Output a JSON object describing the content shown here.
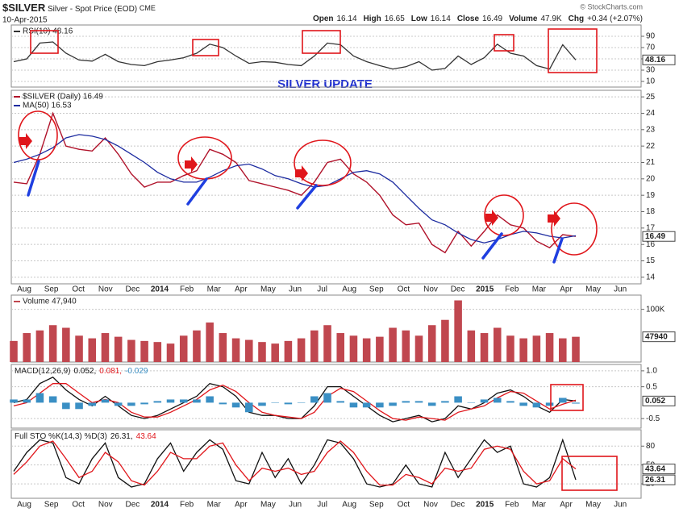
{
  "header": {
    "symbol": "$SILVER",
    "description": "Silver - Spot Price (EOD)",
    "exchange": "CME",
    "date": "10-Apr-2015",
    "source": "© StockCharts.com",
    "quote": [
      {
        "label": "Open",
        "value": "16.14"
      },
      {
        "label": "High",
        "value": "16.65"
      },
      {
        "label": "Low",
        "value": "16.14"
      },
      {
        "label": "Close",
        "value": "16.49"
      },
      {
        "label": "Volume",
        "value": "47.9K"
      },
      {
        "label": "Chg",
        "value": "+0.34 (+2.07%)"
      }
    ]
  },
  "annotation": "SILVER UPDATE",
  "chart_data": [
    {
      "type": "line",
      "ylim": [
        0,
        110
      ],
      "yticks": [
        10,
        30,
        50,
        70,
        90
      ],
      "current": 48.16,
      "grid": true,
      "series": [
        {
          "name": "RSI(10) 48.16",
          "color": "#333333",
          "values": [
            45,
            50,
            78,
            80,
            60,
            48,
            46,
            58,
            45,
            40,
            38,
            45,
            48,
            52,
            60,
            76,
            70,
            55,
            42,
            45,
            44,
            40,
            38,
            55,
            78,
            75,
            55,
            45,
            38,
            32,
            36,
            45,
            30,
            33,
            55,
            40,
            52,
            76,
            60,
            55,
            38,
            32,
            75,
            48.16
          ]
        }
      ]
    },
    {
      "type": "line",
      "ylim": [
        13.6,
        25.4
      ],
      "yticks": [
        14,
        15,
        16,
        17,
        18,
        19,
        20,
        21,
        22,
        23,
        24,
        25
      ],
      "current": 16.49,
      "grid": true,
      "x_axis_labels": [
        "Aug",
        "Sep",
        "Oct",
        "Nov",
        "Dec",
        "2014",
        "Feb",
        "Mar",
        "Apr",
        "May",
        "Jun",
        "Jul",
        "Aug",
        "Sep",
        "Oct",
        "Nov",
        "Dec",
        "2015",
        "Feb",
        "Mar",
        "Apr",
        "May",
        "Jun"
      ],
      "series": [
        {
          "name": "$SILVER (Daily) 16.49",
          "color": "#b0122a",
          "values": [
            19.8,
            19.7,
            21.5,
            24.0,
            22.0,
            21.8,
            21.7,
            22.5,
            21.5,
            20.3,
            19.5,
            19.8,
            19.8,
            20.2,
            20.5,
            21.8,
            21.5,
            21.0,
            19.9,
            19.7,
            19.5,
            19.3,
            19.0,
            19.8,
            21.0,
            21.2,
            20.3,
            19.8,
            19.0,
            17.8,
            17.2,
            17.3,
            16.0,
            15.5,
            16.8,
            15.9,
            16.8,
            17.8,
            17.2,
            17.0,
            16.2,
            15.8,
            16.6,
            16.49
          ]
        },
        {
          "name": "MA(50) 16.53",
          "color": "#1c2ba0",
          "values": [
            21.0,
            21.2,
            21.5,
            21.9,
            22.5,
            22.7,
            22.6,
            22.4,
            22.0,
            21.5,
            21.0,
            20.4,
            20.0,
            19.8,
            19.8,
            20.1,
            20.5,
            20.8,
            20.9,
            20.6,
            20.2,
            20.0,
            19.7,
            19.5,
            19.6,
            20.0,
            20.4,
            20.5,
            20.3,
            19.8,
            19.0,
            18.2,
            17.5,
            17.2,
            16.7,
            16.3,
            16.1,
            16.3,
            16.6,
            16.8,
            16.7,
            16.5,
            16.4,
            16.53
          ]
        }
      ]
    },
    {
      "type": "bar",
      "ylim": [
        0,
        127000
      ],
      "yticks": [
        {
          "value": 100000,
          "label": "100K"
        }
      ],
      "current": 47940,
      "grid": true,
      "series": [
        {
          "name": "Volume 47,940",
          "color": "#c0474f",
          "values": [
            40000,
            55000,
            60000,
            70000,
            65000,
            50000,
            45000,
            55000,
            48000,
            42000,
            40000,
            38000,
            35000,
            50000,
            60000,
            75000,
            55000,
            45000,
            42000,
            38000,
            35000,
            40000,
            45000,
            60000,
            70000,
            55000,
            50000,
            45000,
            48000,
            65000,
            60000,
            50000,
            70000,
            80000,
            117000,
            60000,
            55000,
            65000,
            50000,
            45000,
            50000,
            55000,
            45000,
            47940
          ]
        }
      ]
    },
    {
      "type": "line",
      "title": "MACD(12,26,9)",
      "ylim": [
        -0.8,
        1.2
      ],
      "yticks": [
        -0.5,
        0.5,
        {
          "value": 1,
          "label": "1.0"
        }
      ],
      "current": 0.052,
      "grid": true,
      "series": [
        {
          "name": "0.052,",
          "color": "#111111",
          "values": [
            0.0,
            0.1,
            0.6,
            0.8,
            0.4,
            0.1,
            -0.1,
            0.2,
            -0.1,
            -0.4,
            -0.5,
            -0.4,
            -0.2,
            0.0,
            0.2,
            0.6,
            0.5,
            0.2,
            -0.3,
            -0.4,
            -0.4,
            -0.5,
            -0.5,
            -0.1,
            0.5,
            0.5,
            0.2,
            -0.1,
            -0.4,
            -0.6,
            -0.5,
            -0.4,
            -0.6,
            -0.5,
            -0.1,
            -0.2,
            0.0,
            0.3,
            0.4,
            0.2,
            -0.1,
            -0.3,
            0.1,
            0.052
          ]
        },
        {
          "name": "0.081,",
          "color": "#e0161b",
          "values": [
            -0.1,
            0.0,
            0.3,
            0.6,
            0.6,
            0.3,
            0.0,
            0.1,
            0.0,
            -0.3,
            -0.45,
            -0.45,
            -0.3,
            -0.1,
            0.1,
            0.4,
            0.55,
            0.35,
            0.0,
            -0.3,
            -0.4,
            -0.45,
            -0.5,
            -0.3,
            0.2,
            0.45,
            0.35,
            0.05,
            -0.25,
            -0.5,
            -0.55,
            -0.45,
            -0.5,
            -0.55,
            -0.3,
            -0.2,
            -0.1,
            0.15,
            0.35,
            0.3,
            0.05,
            -0.2,
            -0.05,
            0.081
          ]
        },
        {
          "name": "-0.029",
          "color": "#3a8fc4",
          "type": "bar",
          "values": [
            0.1,
            0.1,
            0.3,
            0.2,
            -0.2,
            -0.2,
            -0.1,
            0.1,
            -0.1,
            -0.1,
            -0.05,
            0.05,
            0.1,
            0.1,
            0.1,
            0.2,
            -0.05,
            -0.15,
            -0.3,
            -0.1,
            0,
            -0.05,
            0,
            0.2,
            0.3,
            0.05,
            -0.15,
            -0.15,
            -0.15,
            -0.1,
            0.05,
            0.05,
            -0.1,
            0.05,
            0.2,
            0,
            0.1,
            0.15,
            0.05,
            -0.1,
            -0.15,
            -0.1,
            0.15,
            -0.029
          ]
        }
      ]
    },
    {
      "type": "line",
      "title": "Full STO %K(14,3) %D(3)",
      "ylim": [
        -3,
        106
      ],
      "yticks": [
        20,
        50,
        80
      ],
      "current": [
        43.64,
        26.31
      ],
      "grid": true,
      "series": [
        {
          "name": "26.31,",
          "color": "#111111",
          "values": [
            40,
            70,
            90,
            85,
            30,
            20,
            60,
            85,
            30,
            15,
            20,
            60,
            85,
            40,
            70,
            90,
            75,
            25,
            20,
            70,
            30,
            60,
            20,
            50,
            90,
            85,
            60,
            20,
            15,
            20,
            50,
            20,
            15,
            70,
            30,
            60,
            90,
            70,
            80,
            20,
            15,
            30,
            90,
            26.31
          ]
        },
        {
          "name": "43.64",
          "color": "#e0161b",
          "values": [
            35,
            55,
            80,
            88,
            60,
            30,
            40,
            70,
            55,
            25,
            18,
            40,
            70,
            60,
            60,
            80,
            85,
            50,
            25,
            45,
            40,
            45,
            35,
            40,
            70,
            88,
            70,
            40,
            18,
            18,
            35,
            30,
            20,
            45,
            40,
            45,
            75,
            80,
            75,
            40,
            20,
            25,
            60,
            43.64
          ]
        }
      ]
    }
  ]
}
